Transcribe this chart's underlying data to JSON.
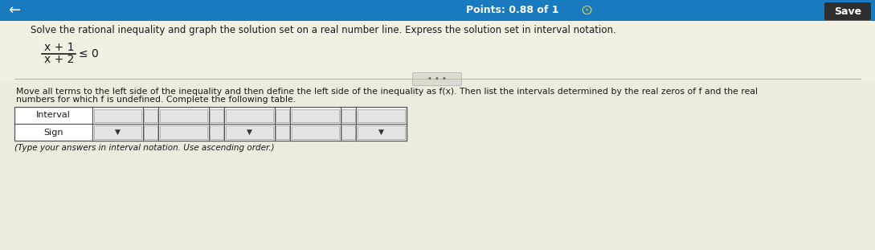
{
  "bg_color": "#edeade",
  "header_bg": "#1a7abf",
  "header_text_color": "#ffffff",
  "title_text": "Points: 0.88 of 1",
  "save_btn_color": "#2e2e2e",
  "save_btn_text": "Save",
  "main_question": "Solve the rational inequality and graph the solution set on a real number line. Express the solution set in interval notation.",
  "fraction_numerator": "x + 1",
  "fraction_denominator": "x + 2",
  "inequality": "≤ 0",
  "divider_text": "• • •",
  "instruction_line1": "Move all terms to the left side of the inequality and then define the left side of the inequality as f(x). Then list the intervals determined by the real zeros of f and the real",
  "instruction_line2": "numbers for which f is undefined. Complete the following table.",
  "table_label_interval": "Interval",
  "table_label_sign": "Sign",
  "footer_note": "(Type your answers in interval notation. Use ascending order.)",
  "dropdown_arrow": "▼",
  "table_bg": "#ffffff",
  "table_border_color": "#555555"
}
